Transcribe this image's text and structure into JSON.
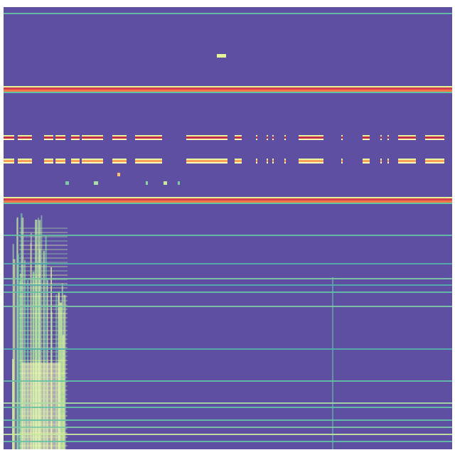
{
  "chart_data": {
    "type": "heatmap",
    "title": "",
    "xlabel": "",
    "ylabel": "",
    "colormap": "Spectral_r",
    "colors": {
      "low": "#5e4fa2",
      "teal": "#66c2a5",
      "mid": "#e6f598",
      "pale": "#ffffbf",
      "orange": "#fdae61",
      "red": "#f46d43",
      "high": "#9e0142"
    },
    "grid_size": {
      "rows": 622,
      "cols": 631
    },
    "horizontal_bands": [
      {
        "row": 8,
        "value": 0.3
      },
      {
        "row": 112,
        "value": 1.0
      },
      {
        "row": 268,
        "value": 1.0
      },
      {
        "row": 320,
        "value": 0.3
      },
      {
        "row": 360,
        "value": 0.25
      },
      {
        "row": 381,
        "value": 0.35
      },
      {
        "row": 390,
        "value": 0.25
      },
      {
        "row": 400,
        "value": 0.3
      },
      {
        "row": 420,
        "value": 0.35
      },
      {
        "row": 480,
        "value": 0.25
      },
      {
        "row": 525,
        "value": 0.3
      },
      {
        "row": 556,
        "value": 0.45
      },
      {
        "row": 562,
        "value": 0.3
      },
      {
        "row": 580,
        "value": 0.3
      },
      {
        "row": 590,
        "value": 0.35
      },
      {
        "row": 600,
        "value": 0.5
      },
      {
        "row": 610,
        "value": 0.3
      }
    ],
    "intermittent_rows": [
      {
        "row": 183,
        "value": 0.95
      },
      {
        "row": 216,
        "value": 0.75
      }
    ],
    "intermittent_cols": [
      [
        0,
        15
      ],
      [
        20,
        40
      ],
      [
        57,
        70
      ],
      [
        73,
        87
      ],
      [
        95,
        107
      ],
      [
        110,
        140
      ],
      [
        153,
        173
      ],
      [
        185,
        223
      ],
      [
        257,
        315
      ],
      [
        325,
        335
      ],
      [
        355,
        357
      ],
      [
        370,
        372
      ],
      [
        378,
        380
      ],
      [
        395,
        397
      ],
      [
        415,
        450
      ],
      [
        475,
        477
      ],
      [
        505,
        515
      ],
      [
        530,
        532
      ],
      [
        540,
        542
      ],
      [
        555,
        580
      ],
      [
        593,
        620
      ]
    ],
    "spots": [
      {
        "row": 68,
        "col": 300,
        "width": 13,
        "value": 0.55
      },
      {
        "row": 235,
        "col": 160,
        "width": 4,
        "value": 0.7
      },
      {
        "row": 247,
        "col": 87,
        "width": 5,
        "value": 0.35
      },
      {
        "row": 247,
        "col": 127,
        "width": 6,
        "value": 0.45
      },
      {
        "row": 247,
        "col": 200,
        "width": 3,
        "value": 0.4
      },
      {
        "row": 247,
        "col": 225,
        "width": 5,
        "value": 0.5
      },
      {
        "row": 247,
        "col": 245,
        "width": 3,
        "value": 0.35
      }
    ],
    "plume": {
      "col_start": 12,
      "col_end": 85,
      "row_start": 290,
      "row_end": 622,
      "peak_value": 0.55
    },
    "faint_column": {
      "col": 462,
      "row_start": 380,
      "row_end": 622,
      "value": 0.3
    }
  }
}
